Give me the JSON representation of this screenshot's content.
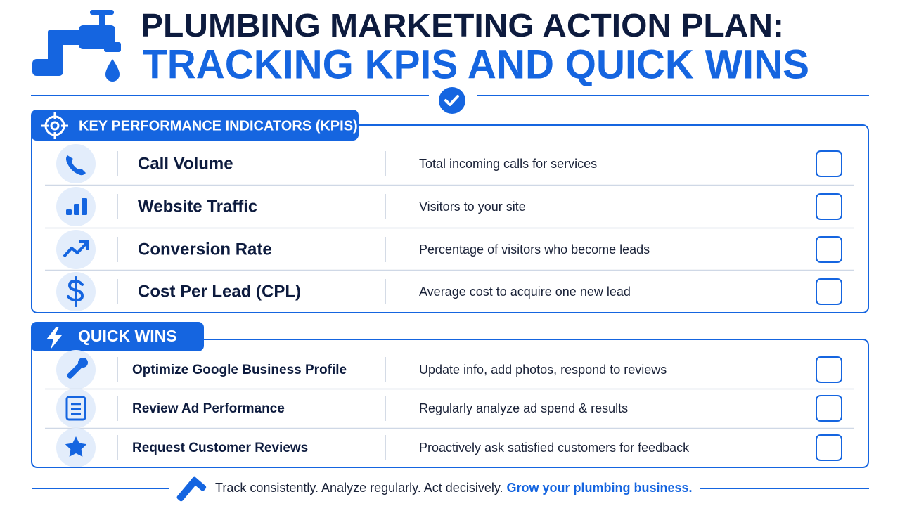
{
  "header": {
    "title_line1": "PLUMBING MARKETING ACTION PLAN:",
    "title_line2": "TRACKING KPIS AND QUICK WINS"
  },
  "kpis": {
    "heading": "KEY PERFORMANCE INDICATORS (KPIS)",
    "rows": [
      {
        "name": "Call Volume",
        "description": "Total incoming calls for services"
      },
      {
        "name": "Website Traffic",
        "description": "Visitors to your site"
      },
      {
        "name": "Conversion Rate",
        "description": "Percentage of visitors who become leads"
      },
      {
        "name": "Cost Per Lead (CPL)",
        "description": "Average cost to acquire one new lead"
      }
    ]
  },
  "quick_wins": {
    "heading": "QUICK WINS",
    "rows": [
      {
        "name": "Optimize Google Business Profile",
        "description": "Update info, add photos, respond to reviews"
      },
      {
        "name": "Review Ad Performance",
        "description": "Regularly analyze ad spend & results"
      },
      {
        "name": "Request Customer Reviews",
        "description": "Proactively ask satisfied customers for feedback"
      }
    ]
  },
  "footer": {
    "text": "Track consistently. Analyze regularly. Act decisively.",
    "highlight": "Grow your plumbing business."
  }
}
